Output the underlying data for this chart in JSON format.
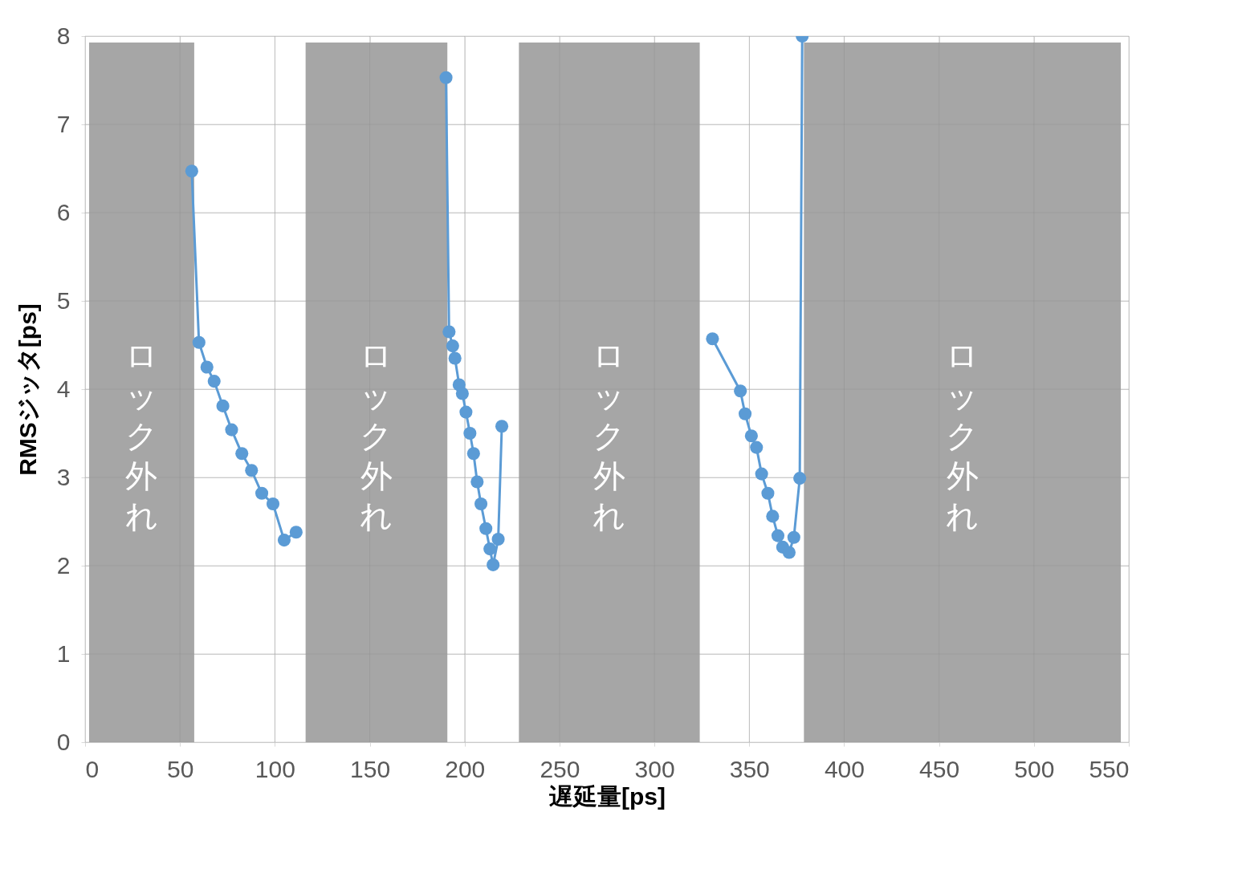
{
  "chart_data": {
    "type": "line",
    "xlabel": "遅延量[ps]",
    "ylabel": "RMSジッタ[ps]",
    "xlim": [
      0,
      550
    ],
    "xticks": [
      0,
      50,
      100,
      150,
      200,
      250,
      300,
      350,
      400,
      450,
      500,
      550
    ],
    "ylim": [
      0,
      8
    ],
    "yticks": [
      0,
      1,
      2,
      3,
      4,
      5,
      6,
      7,
      8
    ],
    "grid": true,
    "marker": "circle",
    "line_style": "solid",
    "series": [
      {
        "color": "#5b9bd5",
        "x": [
          56.2,
          60.0,
          64.2,
          68.0,
          72.6,
          77.2,
          82.6,
          87.7,
          93.1,
          99.0,
          104.9,
          111.2
        ],
        "values": [
          6.47,
          4.53,
          4.25,
          4.09,
          3.81,
          3.54,
          3.27,
          3.08,
          2.82,
          2.7,
          2.29,
          2.38
        ]
      },
      {
        "color": "#5b9bd5",
        "x": [
          190.2,
          191.8,
          193.7,
          194.9,
          197.1,
          198.8,
          200.7,
          202.8,
          204.7,
          206.6,
          208.6,
          211.2,
          213.3,
          215.0,
          217.7,
          219.6
        ],
        "values": [
          7.53,
          4.65,
          4.49,
          4.35,
          4.05,
          3.95,
          3.74,
          3.5,
          3.27,
          2.95,
          2.7,
          2.42,
          2.19,
          2.01,
          2.3,
          3.58
        ]
      },
      {
        "color": "#5b9bd5",
        "x": [
          330.6,
          345.3,
          347.8,
          351.1,
          353.8,
          356.5,
          359.8,
          362.3,
          365.1,
          367.6,
          371.0,
          373.5,
          376.6,
          377.9
        ],
        "values": [
          4.57,
          3.98,
          3.72,
          3.47,
          3.34,
          3.04,
          2.82,
          2.56,
          2.34,
          2.21,
          2.15,
          2.32,
          2.99,
          8.0
        ]
      }
    ],
    "bands": [
      {
        "axis": "x",
        "from": 2.1,
        "to": 57.5,
        "label": "ロック外れ",
        "color": "#a6a6a6"
      },
      {
        "axis": "x",
        "from": 116.2,
        "to": 190.9,
        "label": "ロック外れ",
        "color": "#a6a6a6"
      },
      {
        "axis": "x",
        "from": 228.6,
        "to": 323.9,
        "label": "ロック外れ",
        "color": "#a6a6a6"
      },
      {
        "axis": "x",
        "from": 378.8,
        "to": 545.8,
        "label": "ロック外れ",
        "color": "#a6a6a6"
      }
    ]
  }
}
